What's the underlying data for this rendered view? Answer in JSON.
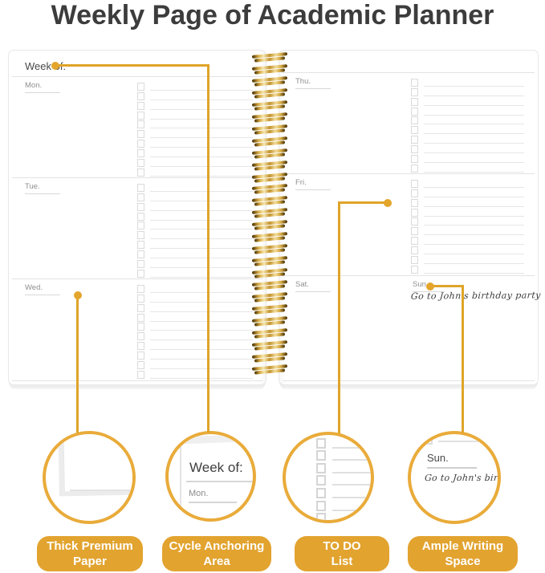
{
  "title": "Weekly Page of Academic Planner",
  "colors": {
    "accent_gold": "#E2A32F",
    "leader_line_gold": "#DFA429",
    "circle_stroke_gold": "#E9AB3A",
    "title_gray": "#3C3C3C",
    "rule_gray": "#E3E3E3"
  },
  "icons": {
    "checkbox": "empty-square-outline",
    "callout_dot": "filled-gold-circle",
    "spiral_loop": "gold-wire-bar"
  },
  "planner": {
    "week_of_label": "Week of:",
    "days_left": [
      {
        "label": "Mon."
      },
      {
        "label": "Tue."
      },
      {
        "label": "Wed."
      }
    ],
    "days_right": [
      {
        "label": "Thu."
      },
      {
        "label": "Fri."
      }
    ],
    "weekend": {
      "sat_label": "Sat.",
      "sun_label": "Sun.",
      "sun_note": "Go to John's birthday party"
    },
    "todo_rows_per_section": 10,
    "spiral_loop_count": 27
  },
  "callouts": {
    "paper": {
      "label_line1": "Thick Premium",
      "label_line2": "Paper"
    },
    "anchoring": {
      "label_line1": "Cycle Anchoring",
      "label_line2": "Area"
    },
    "todo": {
      "label_line1": "TO DO",
      "label_line2": "List",
      "preview_rows": 7
    },
    "writing": {
      "label_line1": "Ample Writing",
      "label_line2": "Space"
    }
  }
}
